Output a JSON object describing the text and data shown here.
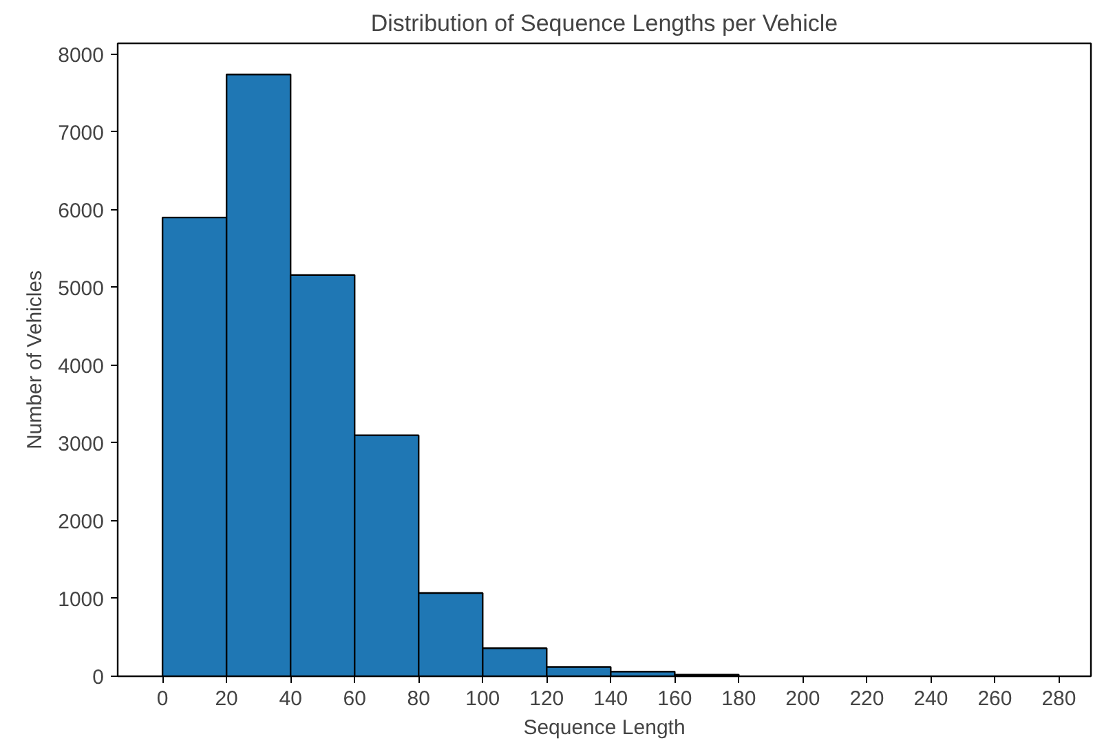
{
  "chart_data": {
    "type": "histogram",
    "title": "Distribution of Sequence Lengths per Vehicle",
    "xlabel": "Sequence Length",
    "ylabel": "Number of Vehicles",
    "bins": [
      0,
      20,
      40,
      60,
      80,
      100,
      120,
      140,
      160,
      180
    ],
    "values": [
      5900,
      7740,
      5160,
      3100,
      1070,
      360,
      120,
      60,
      20
    ],
    "color": "#1f77b4",
    "xlim": [
      -14,
      290
    ],
    "ylim": [
      0,
      8140
    ],
    "xticks": [
      0,
      20,
      40,
      60,
      80,
      100,
      120,
      140,
      160,
      180,
      200,
      220,
      240,
      260,
      280
    ],
    "yticks": [
      0,
      1000,
      2000,
      3000,
      4000,
      5000,
      6000,
      7000,
      8000
    ],
    "grid": false
  }
}
